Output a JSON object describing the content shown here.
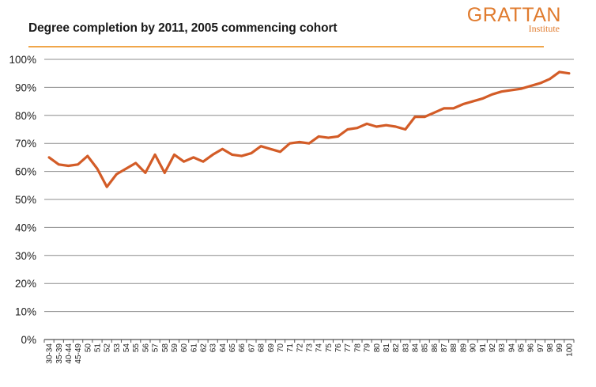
{
  "header": {
    "title": "Degree completion by 2011, 2005 commencing cohort",
    "logo_name": "GRATTAN",
    "logo_sub": "Institute"
  },
  "colors": {
    "line": "#d35c27",
    "grid": "#8c8c8c",
    "logo": "#e07b2e",
    "rule": "#f0a64a"
  },
  "chart_data": {
    "type": "line",
    "title": "Degree completion by 2011, 2005 commencing cohort",
    "xlabel": "",
    "ylabel": "",
    "ylim": [
      0,
      100
    ],
    "yticks": [
      "0%",
      "10%",
      "20%",
      "30%",
      "40%",
      "50%",
      "60%",
      "70%",
      "80%",
      "90%",
      "100%"
    ],
    "grid": true,
    "categories": [
      "30-34",
      "35-39",
      "40-44",
      "45-49",
      "50",
      "51",
      "52",
      "53",
      "54",
      "55",
      "56",
      "57",
      "58",
      "59",
      "60",
      "61",
      "62",
      "63",
      "64",
      "65",
      "66",
      "67",
      "68",
      "69",
      "70",
      "71",
      "72",
      "73",
      "74",
      "75",
      "76",
      "77",
      "78",
      "79",
      "80",
      "81",
      "82",
      "83",
      "84",
      "85",
      "86",
      "87",
      "88",
      "89",
      "90",
      "91",
      "92",
      "93",
      "94",
      "95",
      "96",
      "97",
      "98",
      "99",
      "100"
    ],
    "series": [
      {
        "values": [
          65,
          62.5,
          62,
          62.5,
          65.5,
          61,
          54.5,
          59,
          61,
          63,
          59.5,
          66,
          59.5,
          66,
          63.5,
          65,
          63.5,
          66,
          68,
          66,
          65.5,
          66.5,
          69,
          68,
          67,
          70,
          70.5,
          70,
          72.5,
          72,
          72.5,
          75,
          75.5,
          77,
          76,
          76.5,
          76,
          75,
          79.5,
          79.5,
          81,
          82.5,
          82.5,
          84,
          85,
          86,
          87.5,
          88.5,
          89,
          89.5,
          90.5,
          91.5,
          93,
          95.5,
          95
        ]
      }
    ]
  }
}
